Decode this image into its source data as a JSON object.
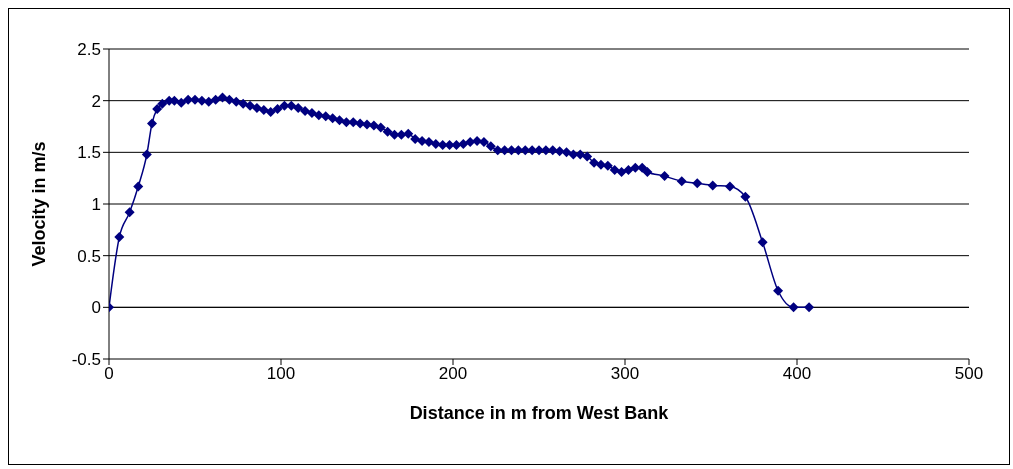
{
  "chart_data": {
    "type": "line",
    "xlabel": "Distance in m from West Bank",
    "ylabel": "Velocity in m/s",
    "x": [
      0,
      6,
      12,
      17,
      22,
      25,
      28,
      31,
      35,
      38,
      42,
      46,
      50,
      54,
      58,
      62,
      66,
      70,
      74,
      78,
      82,
      86,
      90,
      94,
      98,
      102,
      106,
      110,
      114,
      118,
      122,
      126,
      130,
      134,
      138,
      142,
      146,
      150,
      154,
      158,
      162,
      166,
      170,
      174,
      178,
      182,
      186,
      190,
      194,
      198,
      202,
      206,
      210,
      214,
      218,
      222,
      226,
      230,
      234,
      238,
      242,
      246,
      250,
      254,
      258,
      262,
      266,
      270,
      274,
      278,
      282,
      286,
      290,
      294,
      298,
      302,
      306,
      310,
      313,
      323,
      333,
      342,
      351,
      361,
      370,
      380,
      389,
      398,
      407
    ],
    "series": [
      {
        "color": "#000080",
        "values": [
          0,
          0.68,
          0.92,
          1.17,
          1.48,
          1.78,
          1.92,
          1.97,
          2.0,
          2.0,
          1.98,
          2.01,
          2.01,
          2.0,
          1.99,
          2.01,
          2.03,
          2.01,
          1.99,
          1.97,
          1.95,
          1.93,
          1.91,
          1.89,
          1.92,
          1.95,
          1.95,
          1.93,
          1.9,
          1.88,
          1.86,
          1.85,
          1.83,
          1.81,
          1.79,
          1.79,
          1.78,
          1.77,
          1.76,
          1.74,
          1.7,
          1.67,
          1.67,
          1.68,
          1.63,
          1.61,
          1.6,
          1.58,
          1.57,
          1.57,
          1.57,
          1.58,
          1.6,
          1.61,
          1.6,
          1.56,
          1.52,
          1.52,
          1.52,
          1.52,
          1.52,
          1.52,
          1.52,
          1.52,
          1.52,
          1.51,
          1.5,
          1.48,
          1.48,
          1.46,
          1.4,
          1.38,
          1.37,
          1.33,
          1.31,
          1.33,
          1.35,
          1.35,
          1.31,
          1.27,
          1.22,
          1.2,
          1.18,
          1.17,
          1.07,
          0.63,
          0.16,
          0,
          0
        ]
      }
    ],
    "xlim": [
      0,
      500
    ],
    "xticks": [
      0,
      100,
      200,
      300,
      400,
      500
    ],
    "ylim": [
      -0.5,
      2.5
    ],
    "yticks": [
      -0.5,
      0,
      0.5,
      1,
      1.5,
      2,
      2.5
    ],
    "grid": "y",
    "marker": "diamond",
    "line_style": "solid"
  }
}
